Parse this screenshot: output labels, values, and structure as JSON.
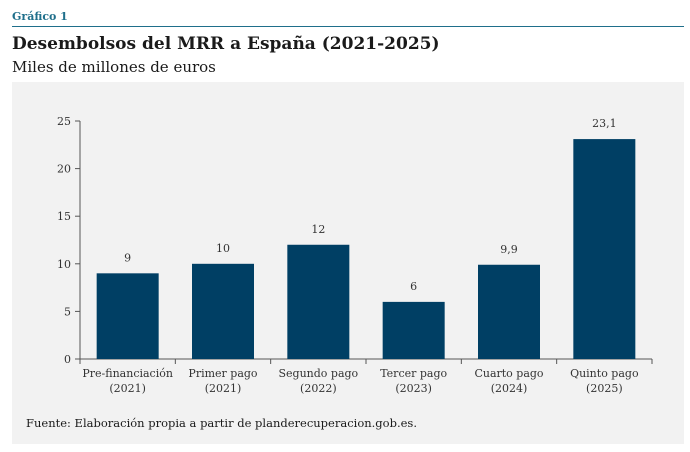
{
  "header": {
    "figure_label": "Gráfico 1",
    "title": "Desembolsos del MRR a España (2021-2025)",
    "subtitle": "Miles de millones de euros"
  },
  "source": "Fuente: Elaboración propia a partir de planderecuperacion.gob.es.",
  "colors": {
    "bar": "#003f64",
    "accent": "#1f6f8b",
    "panel": "#f2f2f2"
  },
  "chart_data": {
    "type": "bar",
    "categories": [
      [
        "Pre-financiación",
        "(2021)"
      ],
      [
        "Primer pago",
        "(2021)"
      ],
      [
        "Segundo pago",
        "(2022)"
      ],
      [
        "Tercer pago",
        "(2023)"
      ],
      [
        "Cuarto pago",
        "(2024)"
      ],
      [
        "Quinto pago",
        "(2025)"
      ]
    ],
    "values": [
      9,
      10,
      12,
      6,
      9.9,
      23.1
    ],
    "data_labels": [
      "9",
      "10",
      "12",
      "6",
      "9,9",
      "23,1"
    ],
    "ylim": [
      0,
      25
    ],
    "yticks": [
      0,
      5,
      10,
      15,
      20,
      25
    ],
    "grid": false,
    "title": "Desembolsos del MRR a España (2021-2025)",
    "ylabel": "Miles de millones de euros",
    "xlabel": ""
  }
}
